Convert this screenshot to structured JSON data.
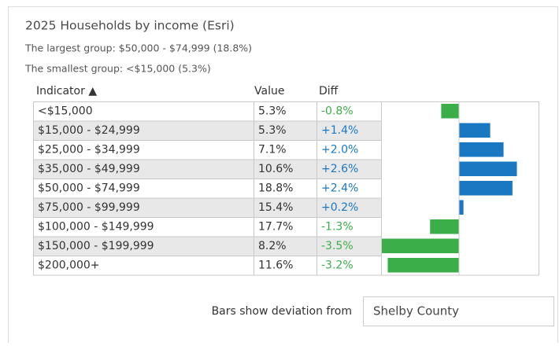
{
  "header": {
    "title": "2025 Households by income (Esri)",
    "largest": "The largest group: $50,000 - $74,999 (18.8%)",
    "smallest": "The smallest group: <$15,000 (5.3%)"
  },
  "table": {
    "columns": [
      "Indicator ▲",
      "Value",
      "Diff"
    ],
    "colors": {
      "positive": "#1a78c2",
      "negative": "#3bae49"
    },
    "rows": [
      {
        "indicator": "<$15,000",
        "value": "5.3%",
        "diff": -0.8,
        "diff_label": "-0.8%"
      },
      {
        "indicator": "$15,000 - $24,999",
        "value": "5.3%",
        "diff": 1.4,
        "diff_label": "+1.4%"
      },
      {
        "indicator": "$25,000 - $34,999",
        "value": "7.1%",
        "diff": 2.0,
        "diff_label": "+2.0%"
      },
      {
        "indicator": "$35,000 - $49,999",
        "value": "10.6%",
        "diff": 2.6,
        "diff_label": "+2.6%"
      },
      {
        "indicator": "$50,000 - $74,999",
        "value": "18.8%",
        "diff": 2.4,
        "diff_label": "+2.4%"
      },
      {
        "indicator": "$75,000 - $99,999",
        "value": "15.4%",
        "diff": 0.2,
        "diff_label": "+0.2%"
      },
      {
        "indicator": "$100,000 - $149,999",
        "value": "17.7%",
        "diff": -1.3,
        "diff_label": "-1.3%"
      },
      {
        "indicator": "$150,000 - $199,999",
        "value": "8.2%",
        "diff": -3.5,
        "diff_label": "-3.5%"
      },
      {
        "indicator": "$200,000+",
        "value": "11.6%",
        "diff": -3.2,
        "diff_label": "-3.2%"
      }
    ]
  },
  "footer": {
    "label": "Bars show deviation from",
    "selection": "Shelby County"
  }
}
